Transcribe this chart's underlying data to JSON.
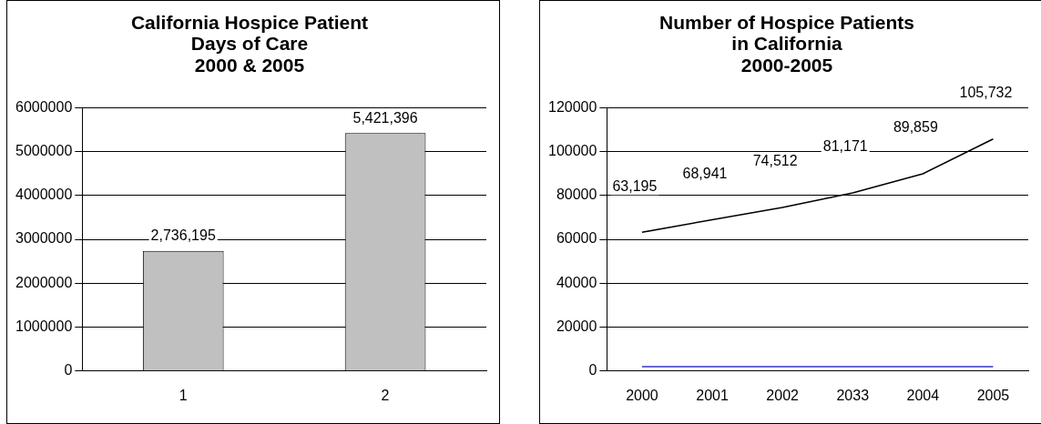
{
  "chart_data": [
    {
      "type": "bar",
      "title": "California Hospice Patient\nDays of Care\n2000 & 2005",
      "categories": [
        "1",
        "2"
      ],
      "series": [
        {
          "color": "#c0c0c0",
          "values": [
            2736195,
            5421396
          ],
          "value_labels": [
            "2,736,195",
            "5,421,396"
          ]
        }
      ],
      "ylim": [
        0,
        6000000
      ],
      "yticks": [
        0,
        1000000,
        2000000,
        3000000,
        4000000,
        5000000,
        6000000
      ],
      "grid": "y",
      "legend": false
    },
    {
      "type": "line",
      "title": "Number of Hospice Patients\nin California\n2000-2005",
      "categories": [
        "2000",
        "2001",
        "2002",
        "2033",
        "2004",
        "2005"
      ],
      "series": [
        {
          "color": "#000000",
          "values": [
            63195,
            68941,
            74512,
            81171,
            89859,
            105732
          ],
          "value_labels": [
            "63,195",
            "68,941",
            "74,512",
            "81,171",
            "89,859",
            "105,732"
          ]
        },
        {
          "color": "#3333cc",
          "values": [
            2000,
            2000,
            2000,
            2000,
            2000,
            2000
          ]
        }
      ],
      "ylim": [
        0,
        120000
      ],
      "yticks": [
        0,
        20000,
        40000,
        60000,
        80000,
        100000,
        120000
      ],
      "grid": "y",
      "legend": false,
      "marker": "none"
    }
  ]
}
